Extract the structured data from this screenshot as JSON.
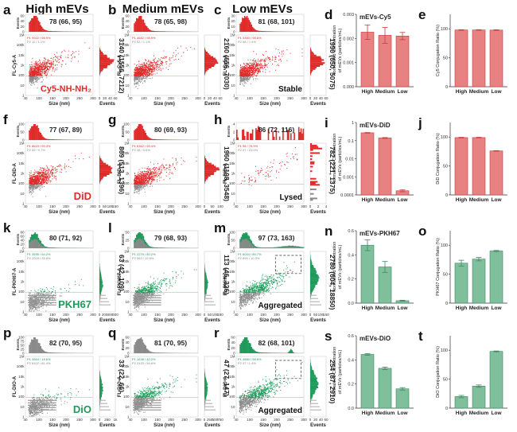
{
  "column_titles": [
    "High mEVs",
    "Medium mEVs",
    "Low mEVs"
  ],
  "colors": {
    "red": "#e02b2b",
    "red_bar": "#e88282",
    "red_edge": "#c93a3a",
    "green": "#1f9a5a",
    "green_bar": "#7fbf9c",
    "green_edge": "#3b8a63",
    "gray": "#8a8a8a"
  },
  "flow_panels": [
    {
      "label": "a",
      "color": "red",
      "size_stat": "78 (66, 95)",
      "fl_stat": "3140 (1556, 7212)",
      "ylabel": "FL-Cy5-A",
      "gate_p1": "P1  9922 / 98.9%",
      "gate_p2": "P2  11 / 1.1%",
      "annotation": "Cy5-NH-NH₂",
      "hist_ticks": [
        "0",
        "20",
        "40",
        "60"
      ],
      "hist_yticks": [
        "0",
        "20",
        "40",
        "60"
      ],
      "aggregated_box": false
    },
    {
      "label": "b",
      "color": "red",
      "size_stat": "78 (65, 98)",
      "fl_stat": "2160 (656, 7030)",
      "ylabel": "FL-Cy5-A",
      "gate_p1": "P1  4682 / 98.9%",
      "gate_p2": "P2  53 / 1.1%",
      "annotation": "",
      "hist_ticks": [
        "0",
        "20",
        "40",
        "60"
      ],
      "hist_yticks": [
        "0",
        "20",
        "40",
        "60"
      ],
      "aggregated_box": false
    },
    {
      "label": "c",
      "color": "red",
      "size_stat": "81 (68, 101)",
      "fl_stat": "1990 (650, 5075)",
      "ylabel": "FL-Cy5-A",
      "gate_p1": "P1  3350 / 98.6%",
      "gate_p2": "P2  48 / 1.4%",
      "annotation": "Stable",
      "hist_ticks": [
        "0",
        "20",
        "40",
        "60"
      ],
      "hist_yticks": [
        "0",
        "10",
        "20",
        "30"
      ],
      "aggregated_box": false
    },
    {
      "label": "f",
      "color": "red",
      "size_stat": "77 (67, 89)",
      "fl_stat": "869 (513, 1396)",
      "ylabel": "FL-DiD-A",
      "gate_p1": "P1  8619 / 99.3%",
      "gate_p2": "P2  59 / 0.7%",
      "annotation": "DiD",
      "hist_ticks": [
        "0",
        "50",
        "100",
        "150"
      ],
      "hist_yticks": [
        "0",
        "50",
        "100"
      ],
      "aggregated_box": false
    },
    {
      "label": "g",
      "color": "red",
      "size_stat": "80 (69, 93)",
      "fl_stat": "1960 (1108, 3548)",
      "ylabel": "FL-DiD-A",
      "gate_p1": "P1  6362 / 99.4%",
      "gate_p2": "P2  38 / 0.6%",
      "annotation": "",
      "hist_ticks": [
        "0",
        "50",
        "100"
      ],
      "hist_yticks": [
        "0",
        "50",
        "100"
      ],
      "aggregated_box": false
    },
    {
      "label": "h",
      "color": "red",
      "size_stat": "86 (72, 116)",
      "fl_stat": "782 (221, 1375)",
      "ylabel": "FL-DiD-A",
      "gate_p1": "P1  98 / 76.9%",
      "gate_p2": "P2  47 / 23.0%",
      "annotation": "Lysed",
      "hist_ticks": [
        "0",
        "2",
        "4"
      ],
      "hist_yticks": [
        "0",
        "2",
        "4"
      ],
      "aggregated_box": false
    },
    {
      "label": "k",
      "color": "green",
      "size_stat": "80 (71, 92)",
      "fl_stat": "63 (42, 109)",
      "ylabel": "FL-PKH67-A",
      "gate_p1": "P1  3595 / 64.2%",
      "gate_p2": "P2  2004 / 35.8%",
      "annotation": "PKH67",
      "hist_ticks": [
        "0",
        "200",
        "400",
        "600"
      ],
      "hist_yticks": [
        "0",
        "20",
        "40",
        "60",
        "80"
      ],
      "aggregated_box": false
    },
    {
      "label": "l",
      "color": "green",
      "size_stat": "79 (68, 93)",
      "fl_stat": "113 (46, 326)",
      "ylabel": "FL-PKH67-A",
      "gate_p1": "P1  2279 / 80.2%",
      "gate_p2": "P2  563 / 19.8%",
      "annotation": "",
      "hist_ticks": [
        "0",
        "50",
        "100",
        "150"
      ],
      "hist_yticks": [
        "0",
        "25",
        "50"
      ],
      "aggregated_box": false
    },
    {
      "label": "m",
      "color": "green",
      "size_stat": "97 (73, 163)",
      "fl_stat": "2780 (604, 18850)",
      "ylabel": "FL-PKH67-A",
      "gate_p1": "P1  6044 / 89.7%",
      "gate_p2": "P2  695 / 10.3%",
      "annotation": "Aggregated",
      "hist_ticks": [
        "0",
        "50",
        "100",
        "150"
      ],
      "hist_yticks": [
        "0",
        "50",
        "100"
      ],
      "aggregated_box": true
    },
    {
      "label": "p",
      "color": "green",
      "size_stat": "82 (70, 95)",
      "fl_stat": "33 (22, 66)",
      "ylabel": "FL-DiO-A",
      "gate_p1": "P1  3664 / 18.6%",
      "gate_p2": "P2  8102 / 81.4%",
      "annotation": "DiO",
      "hist_ticks": [
        "0",
        "250",
        "1k"
      ],
      "hist_yticks": [
        "0",
        "25",
        "50",
        "75",
        "100"
      ],
      "aggregated_box": false
    },
    {
      "label": "q",
      "color": "green",
      "size_stat": "81 (70, 95)",
      "fl_stat": "47 (27, 147)",
      "ylabel": "FL-DiO-A",
      "gate_p1": "P1  1638 / 40.2%",
      "gate_p2": "P2  2433 / 59.8%",
      "annotation": "",
      "hist_ticks": [
        "0",
        "250",
        "500",
        "750"
      ],
      "hist_yticks": [
        "0",
        "20",
        "40",
        "60"
      ],
      "aggregated_box": false
    },
    {
      "label": "r",
      "color": "green",
      "size_stat": "82 (68, 101)",
      "fl_stat": "254 (87, 2910)",
      "ylabel": "FL-DiO-A",
      "gate_p1": "P1  4880 / 98.6%",
      "gate_p2": "P2  57 / 1.4%",
      "annotation": "Aggregated",
      "hist_ticks": [
        "0",
        "20",
        "40",
        "60"
      ],
      "hist_yticks": [
        "0",
        "20",
        "40",
        "60"
      ],
      "aggregated_box": true
    }
  ],
  "flow_axes": {
    "xlabel": "Size (nm)",
    "xticks": [
      "40",
      "100",
      "150",
      "200",
      "250",
      "300"
    ],
    "yticks": [
      "1",
      "10",
      "100",
      "1k",
      "10k",
      "100k",
      "1M"
    ],
    "hist_ylabel": "Events",
    "side_xlabel": "Events"
  },
  "chart_data": [
    {
      "label": "d",
      "type": "bar",
      "title": "mEVs-Cy5",
      "color": "red",
      "categories": [
        "High",
        "Medium",
        "Low"
      ],
      "values": [
        0.00226,
        0.00213,
        0.0021
      ],
      "errors": [
        0.0003,
        0.00033,
        0.00015
      ],
      "ylabel": "Normalized Concentration of mEVs (particles/mL)",
      "ylim": [
        0,
        0.003
      ],
      "yticks": [
        "0.000",
        "0.001",
        "0.002",
        "0.003"
      ],
      "ytick_values": [
        0,
        0.001,
        0.002,
        0.003
      ],
      "scale": "linear"
    },
    {
      "label": "e",
      "type": "bar",
      "title": "",
      "color": "red",
      "categories": [
        "High",
        "Medium",
        "Low"
      ],
      "values": [
        98,
        98,
        97.8
      ],
      "errors": [
        0.5,
        0.5,
        0.5
      ],
      "ylabel": "Cy5 Conjugation Ratio (%)",
      "ylim": [
        0,
        125
      ],
      "yticks": [
        "0",
        "50",
        "100"
      ],
      "ytick_values": [
        0,
        50,
        100
      ],
      "scale": "linear"
    },
    {
      "label": "i",
      "type": "bar",
      "title": "mEVs-DiD",
      "color": "red",
      "categories": [
        "High",
        "Medium",
        "Low"
      ],
      "values": [
        0.27,
        0.14,
        0.00017
      ],
      "errors": [
        0.01,
        0.008,
        2e-05
      ],
      "ylabel": "Normalized Concentration of mEVs (particles/mL)",
      "ylim": [
        0.0001,
        1
      ],
      "yticks": [
        "0.0001",
        "0.001",
        "0.01",
        "0.1",
        "1"
      ],
      "ytick_values": [
        0.0001,
        0.001,
        0.01,
        0.1,
        1
      ],
      "scale": "log"
    },
    {
      "label": "j",
      "type": "bar",
      "title": "",
      "color": "red",
      "categories": [
        "High",
        "Medium",
        "Low"
      ],
      "values": [
        99,
        99,
        76
      ],
      "errors": [
        0.5,
        0.5,
        0.5
      ],
      "ylabel": "DiD Conjugation Ratio (%)",
      "ylim": [
        0,
        125
      ],
      "yticks": [
        "0",
        "50",
        "100"
      ],
      "ytick_values": [
        0,
        50,
        100
      ],
      "scale": "linear"
    },
    {
      "label": "n",
      "type": "bar",
      "title": "mEVs-PKH67",
      "color": "green",
      "categories": [
        "High",
        "Medium",
        "Low"
      ],
      "values": [
        0.48,
        0.3,
        0.02
      ],
      "errors": [
        0.045,
        0.045,
        0.004
      ],
      "ylabel": "Normalized Concentration of mEVs (particles/mL)",
      "ylim": [
        0,
        0.6
      ],
      "yticks": [
        "0.0",
        "0.2",
        "0.4",
        "0.6"
      ],
      "ytick_values": [
        0,
        0.2,
        0.4,
        0.6
      ],
      "scale": "linear"
    },
    {
      "label": "o",
      "type": "bar",
      "title": "",
      "color": "green",
      "categories": [
        "High",
        "Medium",
        "Low"
      ],
      "values": [
        69,
        76,
        90
      ],
      "errors": [
        5,
        3,
        1
      ],
      "ylabel": "PKH67 Conjugation Ratio (%)",
      "ylim": [
        0,
        125
      ],
      "yticks": [
        "0",
        "50",
        "100"
      ],
      "ytick_values": [
        0,
        50,
        100
      ],
      "scale": "linear"
    },
    {
      "label": "s",
      "type": "bar",
      "title": "mEVs-DiO",
      "color": "green",
      "categories": [
        "High",
        "Medium",
        "Low"
      ],
      "values": [
        0.445,
        0.33,
        0.16
      ],
      "errors": [
        0.006,
        0.01,
        0.01
      ],
      "ylabel": "Normalized Concentration of mEVs (particles/mL)",
      "ylim": [
        0,
        0.6
      ],
      "yticks": [
        "0.0",
        "0.2",
        "0.4",
        "0.6"
      ],
      "ytick_values": [
        0,
        0.2,
        0.4,
        0.6
      ],
      "scale": "linear"
    },
    {
      "label": "t",
      "type": "bar",
      "title": "",
      "color": "green",
      "categories": [
        "High",
        "Medium",
        "Low"
      ],
      "values": [
        20,
        38,
        98
      ],
      "errors": [
        2,
        2,
        0.7
      ],
      "ylabel": "DiO Conjugation Ratio (%)",
      "ylim": [
        0,
        125
      ],
      "yticks": [
        "0",
        "50",
        "100"
      ],
      "ytick_values": [
        0,
        50,
        100
      ],
      "scale": "linear"
    }
  ]
}
